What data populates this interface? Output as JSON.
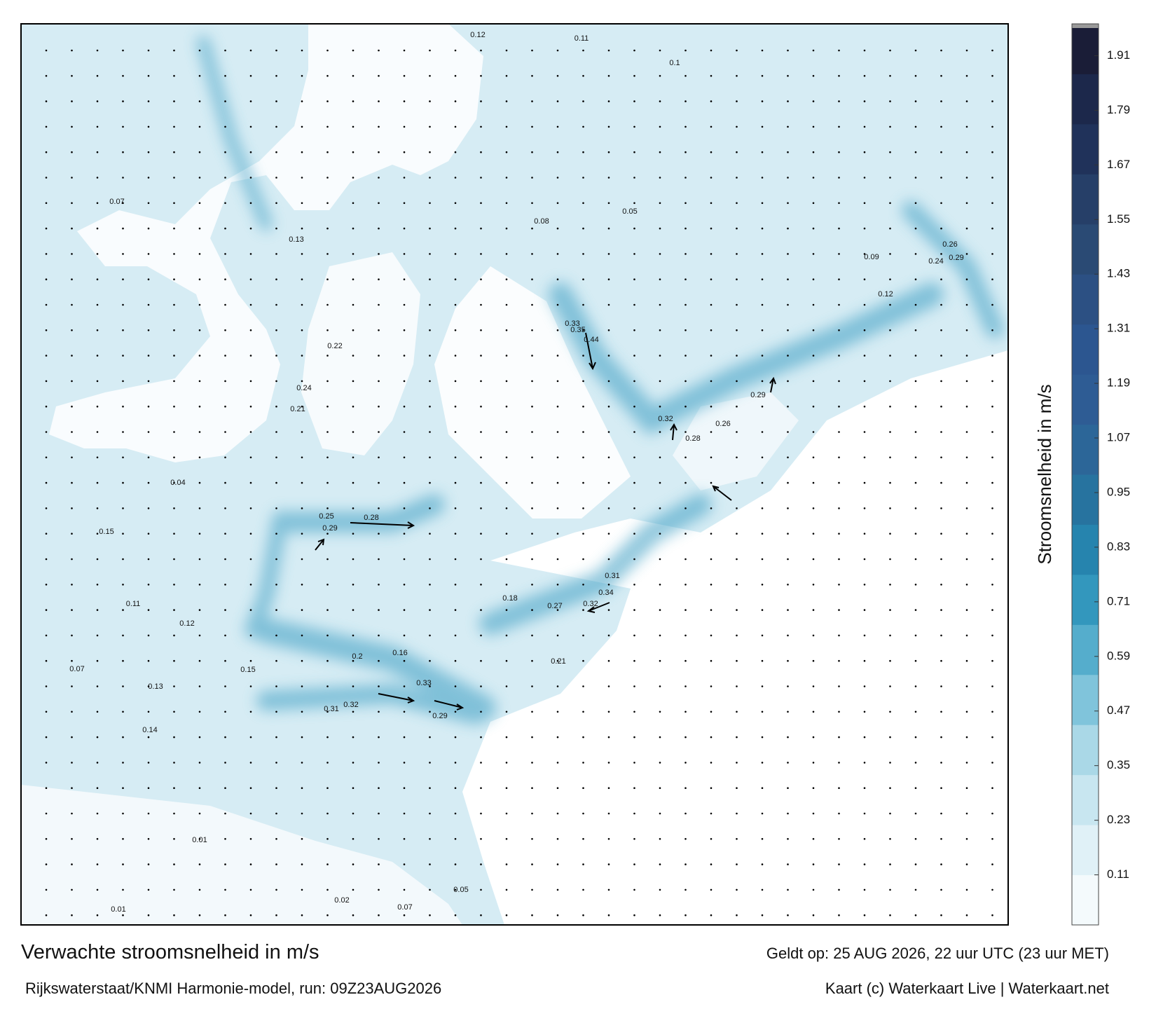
{
  "chart_data": {
    "type": "colorbar",
    "ylabel": "Stroomsnelheid in m/s",
    "ylim": [
      0,
      1.98
    ],
    "yticks": [
      0.11,
      0.23,
      0.35,
      0.47,
      0.59,
      0.71,
      0.83,
      0.95,
      1.07,
      1.19,
      1.31,
      1.43,
      1.55,
      1.67,
      1.79,
      1.91
    ],
    "colors": [
      "#f4fafc",
      "#e0f1f7",
      "#c8e6f0",
      "#aad8e7",
      "#80c4db",
      "#55adcc",
      "#3397bd",
      "#2684ae",
      "#27739f",
      "#2c6698",
      "#2e5c94",
      "#2c5690",
      "#2c5083",
      "#2a4a74",
      "#263f68",
      "#20325a",
      "#1c284b",
      "#1a1d37"
    ]
  },
  "header": {
    "title": "Verwachte stroomsnelheid in m/s",
    "subtitle": "Rijkswaterstaat/KNMI Harmonie-model, run: 09Z23AUG2026",
    "valid": "Geldt op: 25 AUG 2026, 22 uur UTC (23 uur MET)",
    "credit": "Kaart (c) Waterkaart Live | Waterkaart.net"
  },
  "map": {
    "labels": [
      0.44,
      0.35,
      0.33,
      0.32,
      0.28,
      0.29,
      0.26,
      0.34,
      0.31,
      0.32,
      0.33,
      0.29,
      0.32,
      0.31,
      0.28,
      0.29,
      0.25,
      0.22,
      0.24,
      0.21,
      0.2,
      0.16,
      0.15,
      0.14,
      0.13,
      0.12,
      0.11,
      0.07,
      0.15,
      0.12,
      0.29,
      0.26,
      0.24,
      0.11,
      0.12,
      0.1,
      0.05,
      0.09,
      0.08,
      0.13,
      0.07,
      0.04,
      0.01,
      0.01,
      0.02,
      0.07,
      0.05,
      0.18,
      0.27,
      0.21
    ]
  }
}
